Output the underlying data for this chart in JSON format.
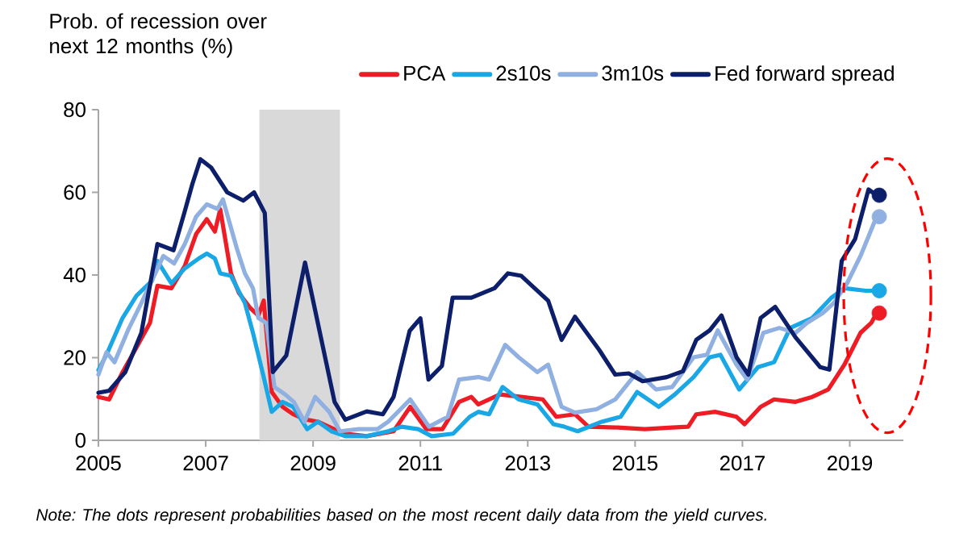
{
  "chart_data": {
    "type": "line",
    "ylabel": "Prob. of recession over next 12 months (%)",
    "annotations": [
      "Note: The dots represent probabilities based on the most recent daily data from the yield curves."
    ],
    "xlim": [
      2005,
      2020
    ],
    "xticks": [
      2005,
      2007,
      2009,
      2011,
      2013,
      2015,
      2017,
      2019
    ],
    "ylim": [
      0,
      80
    ],
    "yticks": [
      0,
      20,
      40,
      60,
      80
    ],
    "legend": "top right",
    "grid": false,
    "bands": [
      {
        "axis": "x",
        "from": 2008,
        "to": 2009.5,
        "color": "#d9d9d9"
      }
    ],
    "series": [
      {
        "name": "PCA",
        "color": "#ee1c25",
        "x": [
          2005.0,
          2005.2,
          2005.45,
          2005.71,
          2005.96,
          2006.1,
          2006.36,
          2006.61,
          2006.82,
          2007.02,
          2007.17,
          2007.27,
          2007.47,
          2007.62,
          2007.83,
          2007.98,
          2008.08,
          2008.23,
          2008.43,
          2008.63,
          2008.84,
          2009.09,
          2009.39,
          2009.6,
          2010.0,
          2010.5,
          2010.81,
          2011.11,
          2011.41,
          2011.72,
          2011.95,
          2012.08,
          2012.48,
          2012.88,
          2013.28,
          2013.53,
          2013.88,
          2014.13,
          2014.68,
          2015.18,
          2015.69,
          2015.99,
          2016.14,
          2016.49,
          2016.89,
          2017.04,
          2017.34,
          2017.59,
          2017.99,
          2018.3,
          2018.6,
          2018.9,
          2019.2,
          2019.4,
          2019.5
        ],
        "values": [
          10.5,
          9.9,
          16.5,
          22.5,
          28.4,
          37.4,
          36.8,
          42.2,
          49.9,
          53.5,
          50.5,
          55.9,
          40.4,
          35.6,
          32,
          30.2,
          33.8,
          11.7,
          8.1,
          6.3,
          5.1,
          4.5,
          2.7,
          1.6,
          1,
          2.2,
          8.1,
          2.7,
          2.7,
          9.3,
          10.5,
          8.7,
          11.1,
          10.5,
          9.9,
          5.7,
          6.3,
          3.3,
          3.1,
          2.7,
          3.1,
          3.3,
          6.3,
          6.9,
          5.7,
          3.9,
          8.1,
          9.9,
          9.3,
          10.5,
          12.3,
          18.3,
          26,
          28.4,
          30.8
        ]
      },
      {
        "name": "2s10s",
        "color": "#1aa7e6",
        "x": [
          2005.0,
          2005.15,
          2005.45,
          2005.71,
          2006.0,
          2006.1,
          2006.36,
          2006.61,
          2006.87,
          2007.02,
          2007.17,
          2007.27,
          2007.47,
          2007.73,
          2007.88,
          2008.08,
          2008.23,
          2008.43,
          2008.63,
          2008.89,
          2009.09,
          2009.34,
          2009.6,
          2010.0,
          2010.4,
          2010.65,
          2010.96,
          2011.21,
          2011.61,
          2011.92,
          2012.08,
          2012.28,
          2012.53,
          2012.83,
          2013.18,
          2013.48,
          2013.68,
          2013.93,
          2014.38,
          2014.73,
          2015.04,
          2015.44,
          2015.74,
          2016.09,
          2016.39,
          2016.59,
          2016.94,
          2017.29,
          2017.59,
          2017.89,
          2018.3,
          2018.65,
          2018.9,
          2019.3,
          2019.5
        ],
        "values": [
          17,
          20.7,
          29.6,
          35,
          38.6,
          43.4,
          38,
          41.6,
          44,
          45.2,
          44,
          40.4,
          39.8,
          33.2,
          26,
          15.3,
          6.9,
          9.3,
          8.1,
          2.7,
          4.5,
          2.2,
          1,
          1,
          2.2,
          3.3,
          2.7,
          1,
          1.6,
          5.7,
          6.9,
          6.3,
          12.9,
          9.9,
          8.7,
          3.9,
          3.3,
          2.2,
          4.5,
          5.7,
          11.7,
          8.1,
          11.1,
          15.3,
          20.1,
          20.7,
          12.3,
          17.7,
          18.9,
          27.2,
          29.6,
          34.4,
          36.8,
          36.2,
          36.2
        ]
      },
      {
        "name": "3m10s",
        "color": "#8fb0e0",
        "x": [
          2005.0,
          2005.15,
          2005.3,
          2005.55,
          2005.8,
          2006.06,
          2006.21,
          2006.41,
          2006.61,
          2006.82,
          2007.02,
          2007.22,
          2007.32,
          2007.58,
          2007.73,
          2007.88,
          2007.98,
          2008.13,
          2008.28,
          2008.48,
          2008.64,
          2008.84,
          2009.04,
          2009.3,
          2009.5,
          2009.85,
          2010.2,
          2010.4,
          2010.81,
          2011.16,
          2011.51,
          2011.72,
          2012.08,
          2012.28,
          2012.58,
          2012.83,
          2013.18,
          2013.38,
          2013.63,
          2013.88,
          2014.28,
          2014.63,
          2015.04,
          2015.39,
          2015.69,
          2016.09,
          2016.34,
          2016.54,
          2016.89,
          2017.09,
          2017.39,
          2017.69,
          2017.99,
          2018.2,
          2018.5,
          2018.7,
          2018.95,
          2019.2,
          2019.5
        ],
        "values": [
          15.9,
          21.3,
          18.9,
          26.6,
          33.2,
          40.4,
          44.6,
          42.8,
          47.5,
          54.1,
          57.1,
          56,
          58.3,
          46.4,
          40.4,
          36.8,
          29.6,
          28.4,
          12.9,
          11.1,
          9.3,
          4.5,
          10.5,
          6.9,
          2.2,
          2.7,
          2.7,
          4.5,
          9.9,
          3.3,
          5.7,
          14.7,
          15.3,
          14.7,
          23.1,
          20.1,
          16.5,
          18.3,
          8.1,
          6.7,
          7.5,
          9.9,
          16.5,
          12.3,
          12.9,
          20.1,
          20.7,
          26.6,
          18.3,
          14.7,
          26,
          27.2,
          26,
          28.4,
          30.8,
          33.2,
          38,
          44.6,
          54.1
        ]
      },
      {
        "name": "Fed forward spread",
        "color": "#0d1f6b",
        "x": [
          2005.0,
          2005.2,
          2005.5,
          2005.8,
          2006.1,
          2006.4,
          2006.6,
          2006.75,
          2006.9,
          2007.1,
          2007.4,
          2007.7,
          2007.9,
          2008.1,
          2008.25,
          2008.5,
          2008.85,
          2009.4,
          2009.6,
          2010.0,
          2010.3,
          2010.5,
          2010.8,
          2011.0,
          2011.15,
          2011.4,
          2011.6,
          2011.95,
          2012.38,
          2012.63,
          2012.88,
          2013.38,
          2013.63,
          2013.88,
          2014.33,
          2014.63,
          2014.88,
          2015.14,
          2015.59,
          2015.89,
          2016.14,
          2016.39,
          2016.61,
          2016.89,
          2017.11,
          2017.34,
          2017.61,
          2017.99,
          2018.45,
          2018.62,
          2018.85,
          2019.1,
          2019.35,
          2019.5
        ],
        "values": [
          11.5,
          12,
          16.5,
          26,
          47.5,
          46,
          55,
          62,
          68,
          66,
          60,
          58,
          60,
          55,
          16.5,
          20.5,
          43,
          9.3,
          5,
          7,
          6.3,
          10.5,
          26.5,
          29.5,
          14.7,
          18,
          34.5,
          34.5,
          36.8,
          40.4,
          39.8,
          33.8,
          24.3,
          29.9,
          21.9,
          15.9,
          16.2,
          14.3,
          15.3,
          16.7,
          24.3,
          26.6,
          30.2,
          20.1,
          15.9,
          29.6,
          32.3,
          24.9,
          17.7,
          17.1,
          43.4,
          48.7,
          60.7,
          59.3
        ]
      },
      {
        "type": "scatter",
        "marker": "circle",
        "color": "#ee1c25",
        "x": [
          2019.55
        ],
        "values": [
          30.8
        ]
      },
      {
        "type": "scatter",
        "marker": "circle",
        "color": "#1aa7e6",
        "x": [
          2019.55
        ],
        "values": [
          36.2
        ]
      },
      {
        "type": "scatter",
        "marker": "circle",
        "color": "#8fb0e0",
        "x": [
          2019.55
        ],
        "values": [
          54.1
        ]
      },
      {
        "type": "scatter",
        "marker": "circle",
        "color": "#0d1f6b",
        "x": [
          2019.55
        ],
        "values": [
          59.3
        ]
      }
    ]
  }
}
